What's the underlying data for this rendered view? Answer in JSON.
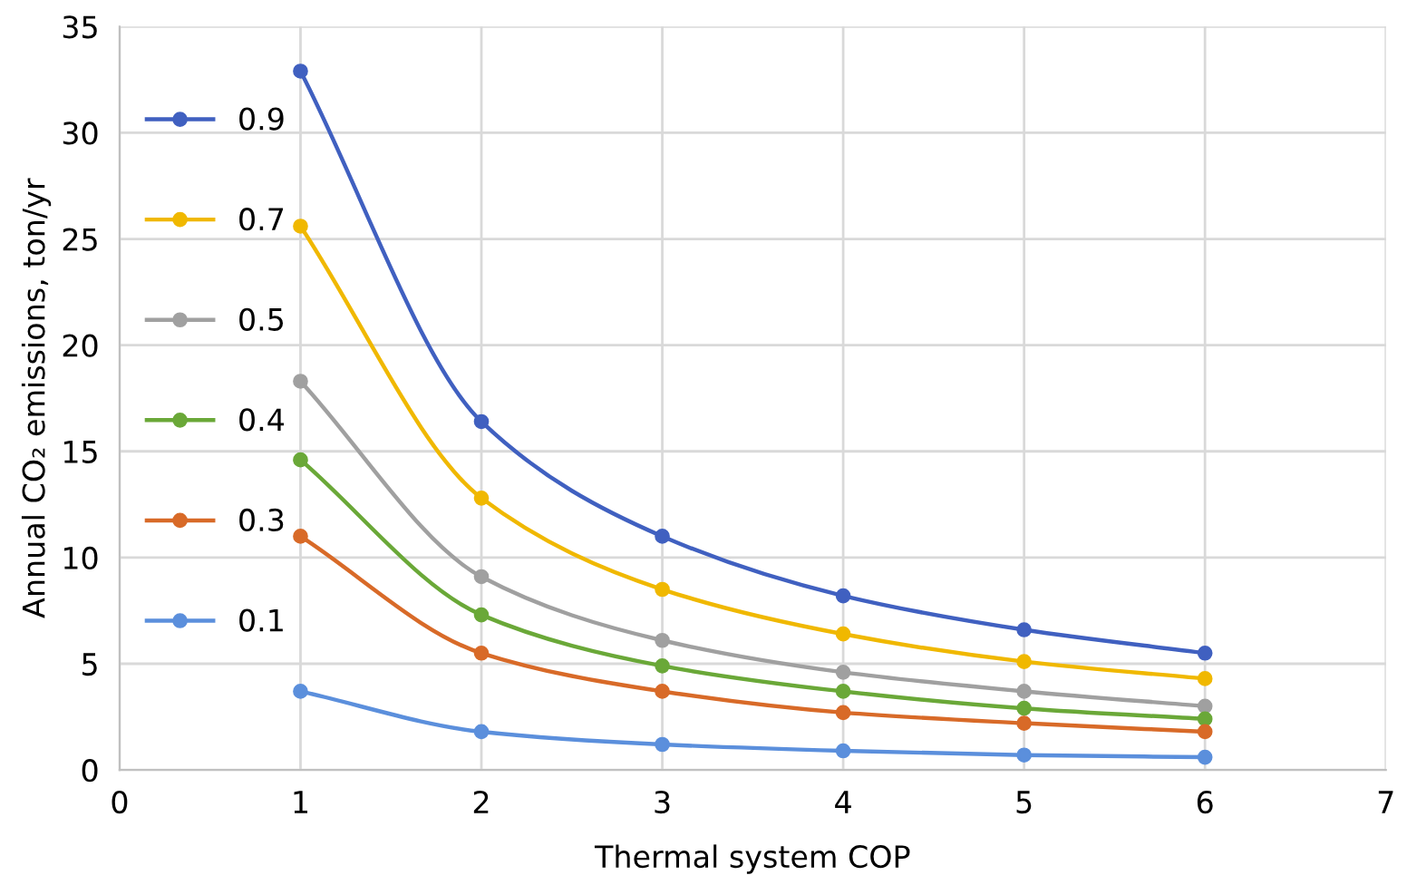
{
  "chart_data": {
    "type": "line",
    "xlabel": "Thermal system COP",
    "ylabel": "Annual CO₂ emissions, ton/yr",
    "x": [
      1,
      2,
      3,
      4,
      5,
      6
    ],
    "series": [
      {
        "name": "0.9",
        "color": "#4060c0",
        "values": [
          32.9,
          16.4,
          11.0,
          8.2,
          6.6,
          5.5
        ]
      },
      {
        "name": "0.7",
        "color": "#f0b800",
        "values": [
          25.6,
          12.8,
          8.5,
          6.4,
          5.1,
          4.3
        ]
      },
      {
        "name": "0.5",
        "color": "#a0a0a0",
        "values": [
          18.3,
          9.1,
          6.1,
          4.6,
          3.7,
          3.0
        ]
      },
      {
        "name": "0.4",
        "color": "#6aa838",
        "values": [
          14.6,
          7.3,
          4.9,
          3.7,
          2.9,
          2.4
        ]
      },
      {
        "name": "0.3",
        "color": "#d86a28",
        "values": [
          11.0,
          5.5,
          3.7,
          2.7,
          2.2,
          1.8
        ]
      },
      {
        "name": "0.1",
        "color": "#5b8fdc",
        "values": [
          3.7,
          1.8,
          1.2,
          0.9,
          0.7,
          0.6
        ]
      }
    ],
    "xlim": [
      0,
      7
    ],
    "xticks": [
      0,
      1,
      2,
      3,
      4,
      5,
      6,
      7
    ],
    "ylim": [
      0,
      35
    ],
    "yticks": [
      0,
      5,
      10,
      15,
      20,
      25,
      30,
      35
    ],
    "grid": true,
    "legend": "left",
    "marker": "circle",
    "line_style": "solid"
  }
}
